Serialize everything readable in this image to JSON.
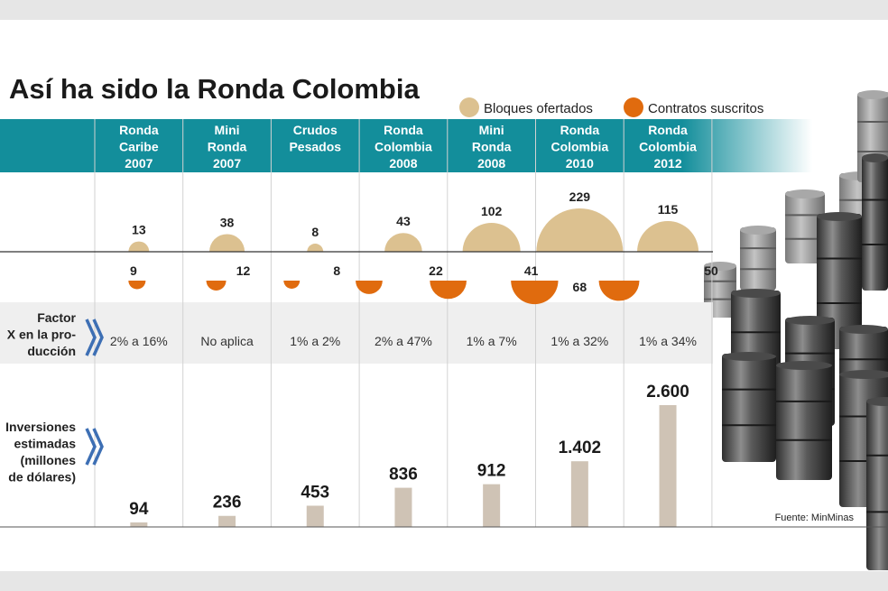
{
  "chart_data": {
    "type": "bar",
    "title": "Así ha sido la Ronda Colombia",
    "categories": [
      [
        "Ronda",
        "Caribe",
        "2007"
      ],
      [
        "Mini",
        "Ronda",
        "2007"
      ],
      [
        "Crudos",
        "Pesados"
      ],
      [
        "Ronda",
        "Colombia",
        "2008"
      ],
      [
        "Mini",
        "Ronda",
        "2008"
      ],
      [
        "Ronda",
        "Colombia",
        "2010"
      ],
      [
        "Ronda",
        "Colombia",
        "2012"
      ]
    ],
    "legend": [
      {
        "name": "Bloques ofertados",
        "color": "#dcc190"
      },
      {
        "name": "Contratos suscritos",
        "color": "#e06b0e"
      }
    ],
    "series": [
      {
        "name": "Bloques ofertados",
        "values": [
          13,
          38,
          8,
          43,
          102,
          229,
          115
        ]
      },
      {
        "name": "Contratos suscritos",
        "values": [
          9,
          12,
          8,
          22,
          41,
          68,
          50
        ]
      }
    ],
    "factor": {
      "label": [
        "Factor",
        "X en la pro-",
        "ducción"
      ],
      "values": [
        "2% a 16%",
        "No aplica",
        "1% a 2%",
        "2% a 47%",
        "1% a 7%",
        "1% a 32%",
        "1% a 34%"
      ]
    },
    "inversiones": {
      "label": [
        "Inversiones",
        "estimadas",
        "(millones",
        "de dólares)"
      ],
      "values": [
        94,
        236,
        453,
        836,
        912,
        1402,
        2600
      ],
      "labels": [
        "94",
        "236",
        "453",
        "836",
        "912",
        "1.402",
        "2.600"
      ],
      "color": "#cfc3b5"
    },
    "source": "Fuente: MinMinas",
    "colors": {
      "header": "#138e9b",
      "band": "#efefef",
      "chevron": "#3d6fb4"
    }
  }
}
